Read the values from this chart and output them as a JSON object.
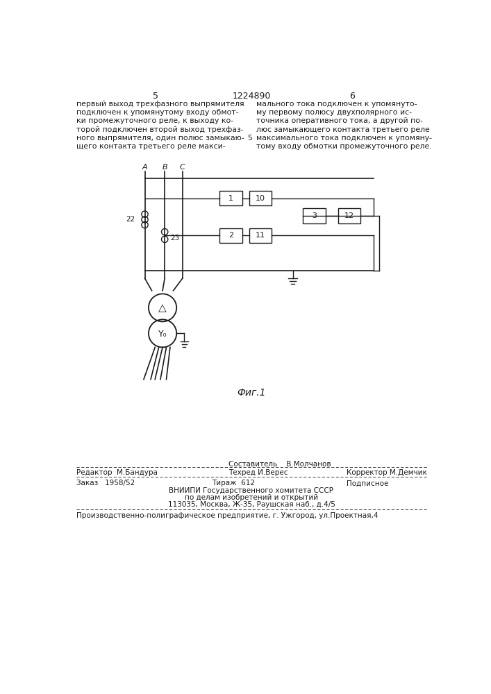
{
  "bg_color": "#ffffff",
  "text_color": "#1a1a1a",
  "page_number_left": "5",
  "page_number_center": "1224890",
  "page_number_right": "6",
  "col_left_text": [
    "первый выход трехфазного выпрямителя",
    "подключен к упомянутому входу обмот-",
    "ки промежуточного реле, к выходу ко-",
    "торой подключен второй выход трехфаз-",
    "ного выпрямителя, один полюс замыкаю-",
    "щего контакта третьего реле макси-"
  ],
  "col_right_text": [
    "мального тока подключен к упомянуто-",
    "му первому полюсу двухполярного ис-",
    "точника оперативного тока, а другой по-",
    "люс замыкающего контакта третьего реле",
    "максимального тока подключен к упомяну-",
    "тому входу обмотки промежуточного реле."
  ],
  "fig_label": "Фиг.1",
  "editor_line": "Редактор  М.Бандура",
  "composer_line1": "Составитель    В.Молчанов",
  "composer_line2": "Техред И.Верес",
  "corrector_line": "Корректор М.Демчик",
  "order_line": "Заказ   1958/52",
  "tiraz_line": "Тираж  612",
  "podpisnoe_line": "Подписное",
  "vnipi_line1": "ВНИИПИ Государственного хомитета СССР",
  "vnipi_line2": "по делам изобретений и открытий",
  "vnipi_line3": "113035, Москва, Ж-35, Раушская наб., д.4/5",
  "factory_line": "Производственно-полиграфическое предприятие, г. Ужгород, ул.Проектная,4"
}
